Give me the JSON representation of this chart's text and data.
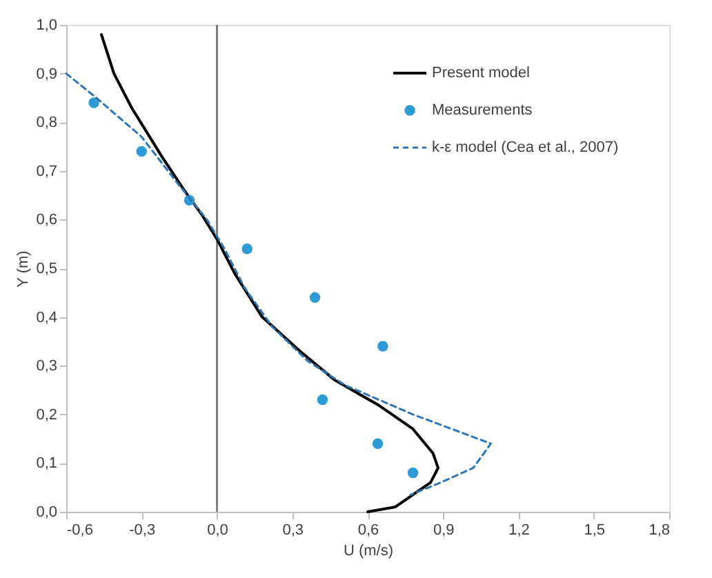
{
  "chart_data": {
    "type": "line",
    "xlabel": "U (m/s)",
    "ylabel": "Y (m)",
    "xlim": [
      -0.6,
      1.8
    ],
    "ylim": [
      0,
      1
    ],
    "xticks": [
      {
        "value": -0.6,
        "label": "-0,6"
      },
      {
        "value": -0.3,
        "label": "-0,3"
      },
      {
        "value": 0,
        "label": "0,0"
      },
      {
        "value": 0.3,
        "label": "0,3"
      },
      {
        "value": 0.6,
        "label": "0,6"
      },
      {
        "value": 0.9,
        "label": "0,9"
      },
      {
        "value": 1.2,
        "label": "1,2"
      },
      {
        "value": 1.5,
        "label": "1,5"
      },
      {
        "value": 1.8,
        "label": "1,8"
      }
    ],
    "yticks": [
      {
        "value": 0,
        "label": "0,0"
      },
      {
        "value": 0.1,
        "label": "0,1"
      },
      {
        "value": 0.2,
        "label": "0,2"
      },
      {
        "value": 0.3,
        "label": "0,3"
      },
      {
        "value": 0.4,
        "label": "0,4"
      },
      {
        "value": 0.5,
        "label": "0,5"
      },
      {
        "value": 0.6,
        "label": "0,6"
      },
      {
        "value": 0.7,
        "label": "0,7"
      },
      {
        "value": 0.8,
        "label": "0,8"
      },
      {
        "value": 0.9,
        "label": "0,9"
      },
      {
        "value": 1,
        "label": "1,0"
      }
    ],
    "grid": false,
    "legend": "top right",
    "ref_lines": [
      {
        "axis": "x",
        "value": 0,
        "color": "#7f7f7f"
      }
    ],
    "series": [
      {
        "name": "Present model",
        "color": "#000000",
        "line_style": "solid",
        "marker": "none",
        "x": [
          -0.46,
          -0.41,
          -0.34,
          -0.22,
          -0.13,
          -0.06,
          0,
          0.07,
          0.18,
          0.33,
          0.47,
          0.64,
          0.78,
          0.86,
          0.88,
          0.85,
          0.71,
          0.6
        ],
        "values": [
          0.98,
          0.9,
          0.83,
          0.73,
          0.66,
          0.61,
          0.56,
          0.49,
          0.4,
          0.33,
          0.27,
          0.22,
          0.17,
          0.12,
          0.09,
          0.06,
          0.01,
          0
        ]
      },
      {
        "name": "Measurements",
        "type": "scatter",
        "color": "#2e9bd6",
        "marker": "circle",
        "x": [
          -0.49,
          -0.3,
          -0.11,
          0.12,
          0.39,
          0.66,
          0.42,
          0.64,
          0.78
        ],
        "values": [
          0.84,
          0.74,
          0.64,
          0.54,
          0.44,
          0.34,
          0.23,
          0.14,
          0.08
        ]
      },
      {
        "name": "k-ε model (Cea et al., 2007)",
        "color": "#2e75b6",
        "line_style": "dashed",
        "marker": "none",
        "x": [
          -0.6,
          -0.48,
          -0.3,
          -0.15,
          -0.04,
          0.03,
          0.11,
          0.22,
          0.36,
          0.51,
          0.78,
          1.09,
          1.02,
          0.89,
          0.77
        ],
        "values": [
          0.9,
          0.85,
          0.77,
          0.67,
          0.6,
          0.54,
          0.46,
          0.38,
          0.31,
          0.26,
          0.2,
          0.14,
          0.09,
          0.06,
          0.035
        ]
      }
    ]
  }
}
